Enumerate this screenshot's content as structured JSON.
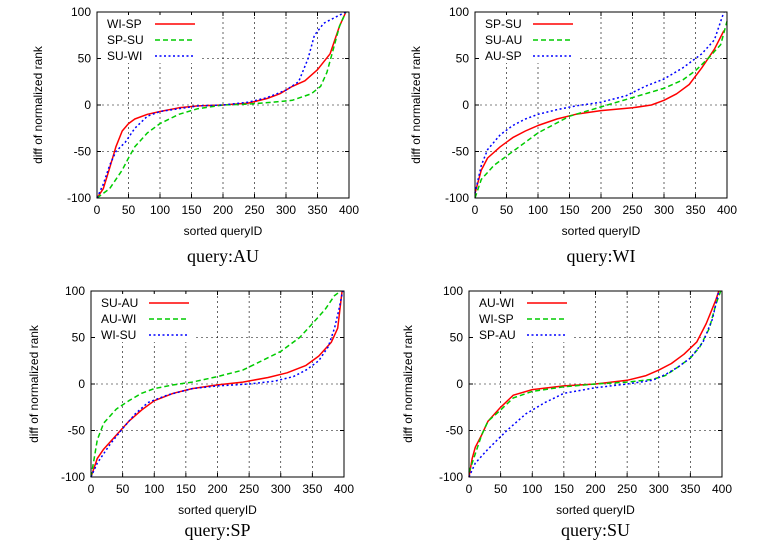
{
  "chart_data": [
    {
      "type": "line",
      "caption": "query:AU",
      "xlabel": "sorted queryID",
      "ylabel": "diff of normalized rank",
      "xlim": [
        0,
        400
      ],
      "ylim": [
        -100,
        100
      ],
      "xticks": [
        "0",
        "50",
        "100",
        "150",
        "200",
        "250",
        "300",
        "350",
        "400"
      ],
      "yticks": [
        "-100",
        "-50",
        "0",
        "50",
        "100"
      ],
      "grid": true,
      "legend_position": "top-left",
      "series": [
        {
          "name": "WI-SP",
          "color": "#ff0000",
          "style": "solid",
          "points": [
            [
              0,
              -100
            ],
            [
              10,
              -90
            ],
            [
              20,
              -68
            ],
            [
              30,
              -45
            ],
            [
              40,
              -28
            ],
            [
              50,
              -20
            ],
            [
              60,
              -15
            ],
            [
              80,
              -10
            ],
            [
              100,
              -7
            ],
            [
              130,
              -3
            ],
            [
              160,
              -1
            ],
            [
              200,
              0
            ],
            [
              240,
              2
            ],
            [
              270,
              7
            ],
            [
              290,
              12
            ],
            [
              310,
              20
            ],
            [
              330,
              26
            ],
            [
              350,
              38
            ],
            [
              370,
              55
            ],
            [
              385,
              85
            ],
            [
              395,
              100
            ]
          ]
        },
        {
          "name": "SP-SU",
          "color": "#00cc00",
          "style": "dashed",
          "points": [
            [
              0,
              -100
            ],
            [
              20,
              -90
            ],
            [
              40,
              -70
            ],
            [
              50,
              -57
            ],
            [
              60,
              -45
            ],
            [
              80,
              -30
            ],
            [
              100,
              -20
            ],
            [
              130,
              -10
            ],
            [
              160,
              -4
            ],
            [
              200,
              0
            ],
            [
              240,
              1
            ],
            [
              280,
              3
            ],
            [
              310,
              5
            ],
            [
              340,
              12
            ],
            [
              355,
              20
            ],
            [
              365,
              35
            ],
            [
              375,
              60
            ],
            [
              385,
              85
            ],
            [
              395,
              100
            ]
          ]
        },
        {
          "name": "SU-WI",
          "color": "#0000ff",
          "style": "dotted",
          "points": [
            [
              0,
              -100
            ],
            [
              10,
              -85
            ],
            [
              20,
              -65
            ],
            [
              30,
              -50
            ],
            [
              45,
              -40
            ],
            [
              60,
              -25
            ],
            [
              80,
              -12
            ],
            [
              100,
              -7
            ],
            [
              130,
              -4
            ],
            [
              160,
              -1
            ],
            [
              200,
              0
            ],
            [
              240,
              3
            ],
            [
              270,
              8
            ],
            [
              300,
              16
            ],
            [
              320,
              25
            ],
            [
              335,
              50
            ],
            [
              345,
              75
            ],
            [
              360,
              88
            ],
            [
              380,
              95
            ],
            [
              395,
              100
            ]
          ]
        }
      ]
    },
    {
      "type": "line",
      "caption": "query:WI",
      "xlabel": "sorted queryID",
      "ylabel": "diff of normalized rank",
      "xlim": [
        0,
        400
      ],
      "ylim": [
        -100,
        100
      ],
      "xticks": [
        "0",
        "50",
        "100",
        "150",
        "200",
        "250",
        "300",
        "350",
        "400"
      ],
      "yticks": [
        "-100",
        "-50",
        "0",
        "50",
        "100"
      ],
      "grid": true,
      "legend_position": "top-left",
      "series": [
        {
          "name": "SP-SU",
          "color": "#ff0000",
          "style": "solid",
          "points": [
            [
              0,
              -95
            ],
            [
              10,
              -70
            ],
            [
              20,
              -57
            ],
            [
              40,
              -45
            ],
            [
              60,
              -35
            ],
            [
              80,
              -28
            ],
            [
              100,
              -22
            ],
            [
              130,
              -15
            ],
            [
              160,
              -10
            ],
            [
              200,
              -6
            ],
            [
              250,
              -3
            ],
            [
              280,
              0
            ],
            [
              300,
              5
            ],
            [
              320,
              12
            ],
            [
              340,
              22
            ],
            [
              360,
              40
            ],
            [
              380,
              60
            ],
            [
              395,
              80
            ]
          ]
        },
        {
          "name": "SU-AU",
          "color": "#00cc00",
          "style": "dashed",
          "points": [
            [
              0,
              -100
            ],
            [
              10,
              -80
            ],
            [
              30,
              -65
            ],
            [
              60,
              -50
            ],
            [
              100,
              -30
            ],
            [
              150,
              -12
            ],
            [
              200,
              -2
            ],
            [
              250,
              8
            ],
            [
              300,
              18
            ],
            [
              330,
              27
            ],
            [
              350,
              37
            ],
            [
              370,
              50
            ],
            [
              390,
              65
            ],
            [
              400,
              90
            ]
          ]
        },
        {
          "name": "AU-SP",
          "color": "#0000ff",
          "style": "dotted",
          "points": [
            [
              0,
              -95
            ],
            [
              10,
              -65
            ],
            [
              20,
              -48
            ],
            [
              40,
              -32
            ],
            [
              60,
              -22
            ],
            [
              80,
              -15
            ],
            [
              100,
              -10
            ],
            [
              130,
              -5
            ],
            [
              160,
              -1
            ],
            [
              200,
              3
            ],
            [
              240,
              10
            ],
            [
              270,
              20
            ],
            [
              300,
              28
            ],
            [
              330,
              40
            ],
            [
              360,
              55
            ],
            [
              380,
              70
            ],
            [
              395,
              100
            ]
          ]
        }
      ]
    },
    {
      "type": "line",
      "caption": "query:SP",
      "xlabel": "sorted queryID",
      "ylabel": "diff of normalized rank",
      "xlim": [
        0,
        400
      ],
      "ylim": [
        -100,
        100
      ],
      "xticks": [
        "0",
        "50",
        "100",
        "150",
        "200",
        "250",
        "300",
        "350",
        "400"
      ],
      "yticks": [
        "-100",
        "-50",
        "0",
        "50",
        "100"
      ],
      "grid": true,
      "legend_position": "top-left",
      "series": [
        {
          "name": "SU-AU",
          "color": "#ff0000",
          "style": "solid",
          "points": [
            [
              0,
              -100
            ],
            [
              10,
              -80
            ],
            [
              20,
              -70
            ],
            [
              40,
              -55
            ],
            [
              60,
              -40
            ],
            [
              80,
              -28
            ],
            [
              100,
              -18
            ],
            [
              130,
              -10
            ],
            [
              160,
              -5
            ],
            [
              200,
              -1
            ],
            [
              240,
              2
            ],
            [
              280,
              7
            ],
            [
              310,
              12
            ],
            [
              340,
              20
            ],
            [
              360,
              30
            ],
            [
              380,
              45
            ],
            [
              390,
              60
            ],
            [
              397,
              100
            ]
          ]
        },
        {
          "name": "AU-WI",
          "color": "#00cc00",
          "style": "dashed",
          "points": [
            [
              0,
              -100
            ],
            [
              5,
              -80
            ],
            [
              10,
              -60
            ],
            [
              20,
              -42
            ],
            [
              40,
              -27
            ],
            [
              60,
              -18
            ],
            [
              80,
              -10
            ],
            [
              100,
              -5
            ],
            [
              130,
              -1
            ],
            [
              160,
              2
            ],
            [
              200,
              8
            ],
            [
              240,
              15
            ],
            [
              270,
              25
            ],
            [
              300,
              35
            ],
            [
              330,
              50
            ],
            [
              350,
              65
            ],
            [
              370,
              80
            ],
            [
              385,
              95
            ],
            [
              395,
              100
            ]
          ]
        },
        {
          "name": "WI-SU",
          "color": "#0000ff",
          "style": "dotted",
          "points": [
            [
              0,
              -100
            ],
            [
              10,
              -85
            ],
            [
              30,
              -65
            ],
            [
              50,
              -48
            ],
            [
              70,
              -32
            ],
            [
              90,
              -20
            ],
            [
              120,
              -12
            ],
            [
              160,
              -5
            ],
            [
              200,
              -2
            ],
            [
              250,
              0
            ],
            [
              290,
              3
            ],
            [
              320,
              8
            ],
            [
              340,
              15
            ],
            [
              360,
              25
            ],
            [
              375,
              40
            ],
            [
              385,
              60
            ],
            [
              392,
              80
            ],
            [
              398,
              100
            ]
          ]
        }
      ]
    },
    {
      "type": "line",
      "caption": "query:SU",
      "xlabel": "sorted queryID",
      "ylabel": "diff of normalized rank",
      "xlim": [
        0,
        400
      ],
      "ylim": [
        -100,
        100
      ],
      "xticks": [
        "0",
        "50",
        "100",
        "150",
        "200",
        "250",
        "300",
        "350",
        "400"
      ],
      "yticks": [
        "-100",
        "-50",
        "0",
        "50",
        "100"
      ],
      "grid": true,
      "legend_position": "top-left",
      "series": [
        {
          "name": "AU-WI",
          "color": "#ff0000",
          "style": "solid",
          "points": [
            [
              0,
              -100
            ],
            [
              5,
              -80
            ],
            [
              10,
              -68
            ],
            [
              20,
              -55
            ],
            [
              30,
              -40
            ],
            [
              50,
              -25
            ],
            [
              70,
              -12
            ],
            [
              100,
              -6
            ],
            [
              150,
              -2
            ],
            [
              200,
              0
            ],
            [
              250,
              4
            ],
            [
              280,
              9
            ],
            [
              300,
              15
            ],
            [
              320,
              22
            ],
            [
              340,
              32
            ],
            [
              360,
              45
            ],
            [
              375,
              65
            ],
            [
              390,
              90
            ],
            [
              395,
              100
            ]
          ]
        },
        {
          "name": "WI-SP",
          "color": "#00cc00",
          "style": "dashed",
          "points": [
            [
              0,
              -95
            ],
            [
              10,
              -75
            ],
            [
              20,
              -55
            ],
            [
              30,
              -40
            ],
            [
              50,
              -28
            ],
            [
              70,
              -15
            ],
            [
              100,
              -8
            ],
            [
              150,
              -3
            ],
            [
              200,
              0
            ],
            [
              250,
              2
            ],
            [
              290,
              5
            ],
            [
              310,
              9
            ],
            [
              330,
              18
            ],
            [
              350,
              28
            ],
            [
              365,
              40
            ],
            [
              380,
              60
            ],
            [
              390,
              85
            ],
            [
              398,
              100
            ]
          ]
        },
        {
          "name": "SP-AU",
          "color": "#0000ff",
          "style": "dotted",
          "points": [
            [
              0,
              -100
            ],
            [
              10,
              -85
            ],
            [
              30,
              -70
            ],
            [
              60,
              -50
            ],
            [
              90,
              -32
            ],
            [
              120,
              -20
            ],
            [
              150,
              -10
            ],
            [
              200,
              -4
            ],
            [
              250,
              0
            ],
            [
              290,
              4
            ],
            [
              310,
              10
            ],
            [
              330,
              18
            ],
            [
              350,
              28
            ],
            [
              370,
              45
            ],
            [
              385,
              70
            ],
            [
              395,
              100
            ]
          ]
        }
      ]
    }
  ]
}
